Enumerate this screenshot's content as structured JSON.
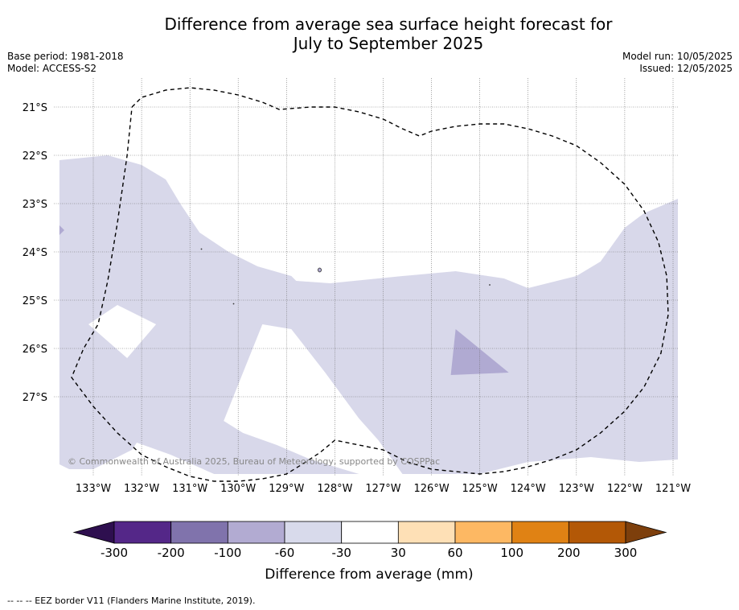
{
  "header": {
    "title_line1": "Difference from average sea surface height forecast for",
    "title_line2": "July to September 2025",
    "base_period": "Base period: 1981-2018",
    "model": "Model: ACCESS-S2",
    "model_run": "Model run: 10/05/2025",
    "issued": "Issued: 12/05/2025"
  },
  "map": {
    "copyright": "© Commonwealth of Australia 2025, Bureau of Meteorology, supported by COSPPac",
    "boundary_style": "dashed",
    "grid": true
  },
  "chart_data": {
    "type": "heatmap",
    "title": "Difference from average sea surface height forecast for July to September 2025",
    "xlim": [
      -133.7,
      -120.9
    ],
    "ylim": [
      -28.6,
      -20.4
    ],
    "x_ticks": [
      -133,
      -132,
      -131,
      -130,
      -129,
      -128,
      -127,
      -126,
      -125,
      -124,
      -123,
      -122,
      -121
    ],
    "x_tick_labels": [
      "133°W",
      "132°W",
      "131°W",
      "130°W",
      "129°W",
      "128°W",
      "127°W",
      "126°W",
      "125°W",
      "124°W",
      "123°W",
      "122°W",
      "121°W"
    ],
    "y_ticks": [
      -21,
      -22,
      -23,
      -24,
      -25,
      -26,
      -27
    ],
    "y_tick_labels": [
      "21°S",
      "22°S",
      "23°S",
      "24°S",
      "25°S",
      "26°S",
      "27°S"
    ],
    "regions": [
      {
        "category": "-60 to -30",
        "color": "#d8d8ea",
        "polygon": [
          [
            -133.7,
            -22.1
          ],
          [
            -132.7,
            -22.0
          ],
          [
            -132.0,
            -22.2
          ],
          [
            -131.5,
            -22.5
          ],
          [
            -131.2,
            -23.0
          ],
          [
            -130.8,
            -23.6
          ],
          [
            -130.2,
            -24.0
          ],
          [
            -129.6,
            -24.3
          ],
          [
            -128.9,
            -24.5
          ],
          [
            -128.8,
            -24.6
          ],
          [
            -128.1,
            -24.65
          ],
          [
            -127.6,
            -24.6
          ],
          [
            -126.6,
            -24.5
          ],
          [
            -125.5,
            -24.4
          ],
          [
            -124.5,
            -24.55
          ],
          [
            -124.0,
            -24.75
          ],
          [
            -123.0,
            -24.5
          ],
          [
            -122.5,
            -24.2
          ],
          [
            -122.0,
            -23.5
          ],
          [
            -121.6,
            -23.2
          ],
          [
            -120.9,
            -22.9
          ],
          [
            -120.9,
            -28.3
          ],
          [
            -121.7,
            -28.35
          ],
          [
            -122.7,
            -28.25
          ],
          [
            -124.0,
            -28.35
          ],
          [
            -125.0,
            -28.6
          ],
          [
            -126.1,
            -28.6
          ],
          [
            -126.6,
            -28.6
          ],
          [
            -127.1,
            -27.9
          ],
          [
            -127.5,
            -27.45
          ],
          [
            -128.2,
            -26.5
          ],
          [
            -128.9,
            -25.6
          ],
          [
            -129.5,
            -25.5
          ],
          [
            -129.9,
            -26.5
          ],
          [
            -130.3,
            -27.5
          ],
          [
            -129.9,
            -27.75
          ],
          [
            -129.2,
            -28.0
          ],
          [
            -128.5,
            -28.3
          ],
          [
            -127.5,
            -28.6
          ],
          [
            -130.5,
            -28.6
          ],
          [
            -131.4,
            -28.2
          ],
          [
            -132.1,
            -27.95
          ],
          [
            -132.2,
            -28.1
          ],
          [
            -133.0,
            -28.5
          ],
          [
            -133.5,
            -28.5
          ],
          [
            -133.7,
            -28.4
          ],
          [
            -133.7,
            -26.0
          ],
          [
            -133.1,
            -25.5
          ],
          [
            -132.5,
            -25.1
          ],
          [
            -131.7,
            -25.5
          ],
          [
            -132.3,
            -26.2
          ],
          [
            -133.1,
            -25.5
          ],
          [
            -133.7,
            -26.0
          ]
        ]
      },
      {
        "category": "-100 to -60",
        "color": "#b0aad2",
        "polygon": [
          [
            -125.5,
            -25.6
          ],
          [
            -124.4,
            -26.5
          ],
          [
            -125.6,
            -26.55
          ]
        ]
      },
      {
        "category": "-100 to -60",
        "color": "#b0aad2",
        "polygon": [
          [
            -133.7,
            -23.45
          ],
          [
            -133.6,
            -23.55
          ],
          [
            -133.7,
            -23.65
          ]
        ]
      }
    ],
    "colorbar": {
      "label": "Difference from average (mm)",
      "tick_labels": [
        "-300",
        "-200",
        "-100",
        "-60",
        "-30",
        "30",
        "60",
        "100",
        "200",
        "300"
      ],
      "extend": "both",
      "under_color": "#2e0f4f",
      "over_color": "#7d3f0c",
      "colors": [
        "#542788",
        "#8073ac",
        "#b2abd2",
        "#d8daeb",
        "#ffffff",
        "#fee0b6",
        "#fdb863",
        "#e08214",
        "#b35806"
      ]
    },
    "boundary_line": {
      "name": "EEZ border V11 (Flanders Marine Institute, 2019).",
      "lonlat": [
        [
          -132.2,
          -21.0
        ],
        [
          -132.0,
          -20.8
        ],
        [
          -131.5,
          -20.65
        ],
        [
          -131.0,
          -20.6
        ],
        [
          -130.5,
          -20.65
        ],
        [
          -130.0,
          -20.75
        ],
        [
          -129.5,
          -20.9
        ],
        [
          -129.15,
          -21.05
        ],
        [
          -128.5,
          -21.0
        ],
        [
          -128.0,
          -21.0
        ],
        [
          -127.5,
          -21.1
        ],
        [
          -127.0,
          -21.25
        ],
        [
          -126.6,
          -21.45
        ],
        [
          -126.25,
          -21.6
        ],
        [
          -126.0,
          -21.5
        ],
        [
          -125.5,
          -21.4
        ],
        [
          -125.0,
          -21.35
        ],
        [
          -124.5,
          -21.35
        ],
        [
          -124.0,
          -21.45
        ],
        [
          -123.5,
          -21.6
        ],
        [
          -123.0,
          -21.8
        ],
        [
          -122.5,
          -22.15
        ],
        [
          -122.0,
          -22.6
        ],
        [
          -121.6,
          -23.15
        ],
        [
          -121.3,
          -23.8
        ],
        [
          -121.13,
          -24.5
        ],
        [
          -121.1,
          -25.3
        ],
        [
          -121.25,
          -26.1
        ],
        [
          -121.6,
          -26.8
        ],
        [
          -122.0,
          -27.3
        ],
        [
          -122.5,
          -27.75
        ],
        [
          -123.0,
          -28.1
        ],
        [
          -123.5,
          -28.3
        ],
        [
          -124.0,
          -28.45
        ],
        [
          -124.5,
          -28.55
        ],
        [
          -125.0,
          -28.6
        ],
        [
          -125.5,
          -28.55
        ],
        [
          -126.0,
          -28.5
        ],
        [
          -126.5,
          -28.35
        ],
        [
          -127.0,
          -28.1
        ],
        [
          -127.5,
          -28.0
        ],
        [
          -128.0,
          -27.9
        ],
        [
          -128.3,
          -28.15
        ],
        [
          -128.6,
          -28.35
        ],
        [
          -129.0,
          -28.6
        ],
        [
          -129.5,
          -28.7
        ],
        [
          -130.0,
          -28.75
        ],
        [
          -130.5,
          -28.75
        ],
        [
          -131.0,
          -28.65
        ],
        [
          -131.5,
          -28.45
        ],
        [
          -132.0,
          -28.2
        ],
        [
          -132.5,
          -27.75
        ],
        [
          -133.0,
          -27.2
        ],
        [
          -133.45,
          -26.6
        ],
        [
          -133.2,
          -26.0
        ],
        [
          -132.9,
          -25.5
        ],
        [
          -132.7,
          -24.6
        ],
        [
          -132.5,
          -23.4
        ],
        [
          -132.3,
          -22.0
        ],
        [
          -132.2,
          -21.0
        ]
      ]
    }
  },
  "footnote": "--  --  -- EEZ border V11 (Flanders Marine Institute, 2019)."
}
